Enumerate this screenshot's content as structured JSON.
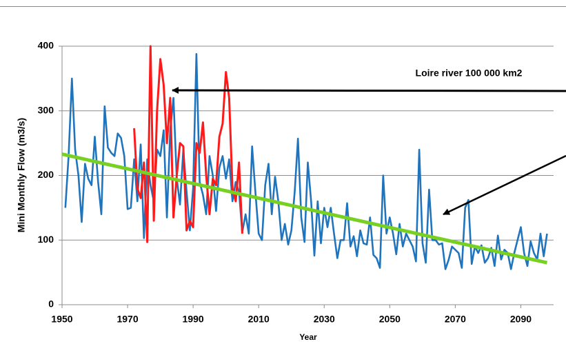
{
  "chart_data": {
    "type": "line",
    "ylabel": "Mini Monthly Flow (m3/s)",
    "xlabel": "Year",
    "annotation": "Loire river 100 000 km2",
    "xlim": [
      1950,
      2100
    ],
    "xticks": [
      1950,
      1970,
      1990,
      2010,
      2030,
      2050,
      2070,
      2090
    ],
    "ylim": [
      0,
      400
    ],
    "yticks": [
      0,
      100,
      200,
      300,
      400
    ],
    "grid": true,
    "x": [
      1951,
      1952,
      1953,
      1954,
      1955,
      1956,
      1957,
      1958,
      1959,
      1960,
      1961,
      1962,
      1963,
      1964,
      1965,
      1966,
      1967,
      1968,
      1969,
      1970,
      1971,
      1972,
      1973,
      1974,
      1975,
      1976,
      1977,
      1978,
      1979,
      1980,
      1981,
      1982,
      1983,
      1984,
      1985,
      1986,
      1987,
      1988,
      1989,
      1990,
      1991,
      1992,
      1993,
      1994,
      1995,
      1996,
      1997,
      1998,
      1999,
      2000,
      2001,
      2002,
      2003,
      2004,
      2005,
      2006,
      2007,
      2008,
      2009,
      2010,
      2011,
      2012,
      2013,
      2014,
      2015,
      2016,
      2017,
      2018,
      2019,
      2020,
      2021,
      2022,
      2023,
      2024,
      2025,
      2026,
      2027,
      2028,
      2029,
      2030,
      2031,
      2032,
      2033,
      2034,
      2035,
      2036,
      2037,
      2038,
      2039,
      2040,
      2041,
      2042,
      2043,
      2044,
      2045,
      2046,
      2047,
      2048,
      2049,
      2050,
      2051,
      2052,
      2053,
      2054,
      2055,
      2056,
      2057,
      2058,
      2059,
      2060,
      2061,
      2062,
      2063,
      2064,
      2065,
      2066,
      2067,
      2068,
      2069,
      2070,
      2071,
      2072,
      2073,
      2074,
      2075,
      2076,
      2077,
      2078,
      2079,
      2080,
      2081,
      2082,
      2083,
      2084,
      2085,
      2086,
      2087,
      2088,
      2089,
      2090,
      2091,
      2092,
      2093,
      2094,
      2095,
      2096,
      2097,
      2098
    ],
    "series": [
      {
        "color": "#1f74be",
        "values": [
          150,
          230,
          350,
          240,
          200,
          128,
          218,
          195,
          185,
          260,
          190,
          140,
          307,
          243,
          235,
          230,
          265,
          258,
          230,
          148,
          150,
          225,
          160,
          248,
          103,
          225,
          185,
          160,
          240,
          230,
          270,
          135,
          270,
          320,
          195,
          155,
          240,
          175,
          115,
          180,
          388,
          190,
          170,
          140,
          230,
          200,
          145,
          212,
          230,
          195,
          225,
          160,
          190,
          175,
          112,
          140,
          110,
          245,
          175,
          110,
          100,
          185,
          218,
          140,
          198,
          160,
          100,
          125,
          93,
          115,
          175,
          257,
          135,
          97,
          220,
          160,
          76,
          160,
          95,
          150,
          120,
          150,
          110,
          72,
          100,
          100,
          157,
          90,
          106,
          75,
          115,
          95,
          93,
          135,
          77,
          72,
          57,
          200,
          110,
          135,
          110,
          78,
          125,
          90,
          110,
          100,
          90,
          67,
          240,
          95,
          65,
          178,
          100,
          100,
          93,
          95,
          55,
          70,
          90,
          85,
          80,
          57,
          150,
          162,
          63,
          90,
          80,
          92,
          65,
          72,
          88,
          60,
          107,
          70,
          85,
          80,
          55,
          80,
          100,
          120,
          80,
          60,
          98,
          80,
          70,
          110,
          75,
          110
        ]
      },
      {
        "color": "#ff1a1a",
        "values": [
          null,
          null,
          null,
          null,
          null,
          null,
          null,
          null,
          null,
          null,
          null,
          null,
          null,
          null,
          null,
          null,
          null,
          null,
          null,
          null,
          null,
          273,
          180,
          165,
          220,
          97,
          400,
          130,
          300,
          380,
          340,
          250,
          320,
          135,
          200,
          250,
          245,
          115,
          130,
          120,
          250,
          235,
          282,
          200,
          140,
          195,
          185,
          260,
          280,
          360,
          320,
          180,
          160,
          220,
          110,
          null,
          null,
          null,
          null,
          null,
          null,
          null,
          null,
          null,
          null,
          null,
          null,
          null,
          null,
          null,
          null,
          null,
          null,
          null,
          null,
          null,
          null,
          null,
          null,
          null,
          null,
          null,
          null,
          null,
          null,
          null,
          null,
          null,
          null,
          null,
          null,
          null,
          null,
          null,
          null,
          null,
          null,
          null,
          null,
          null,
          null,
          null,
          null,
          null,
          null,
          null,
          null,
          null,
          null,
          null,
          null,
          null,
          null,
          null,
          null,
          null,
          null,
          null,
          null,
          null,
          null,
          null,
          null,
          null,
          null,
          null,
          null,
          null,
          null,
          null,
          null,
          null,
          null,
          null,
          null,
          null,
          null,
          null,
          null,
          null,
          null,
          null,
          null,
          null,
          null,
          null,
          null,
          null
        ]
      }
    ],
    "trend": {
      "color": "#78d023",
      "x": [
        1950,
        2098
      ],
      "values": [
        233,
        65
      ]
    }
  }
}
